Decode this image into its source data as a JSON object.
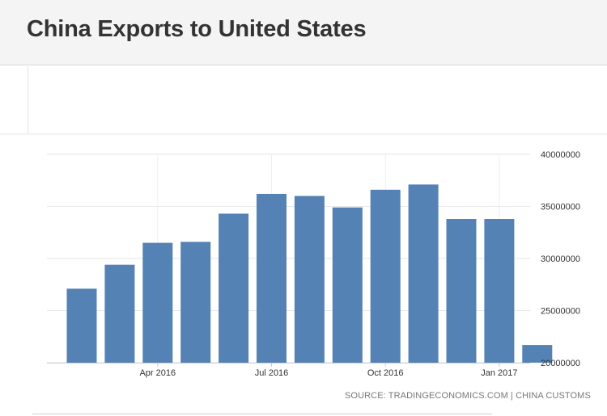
{
  "header": {
    "title": "China Exports to United States"
  },
  "source": {
    "text": "SOURCE: TRADINGECONOMICS.COM | CHINA CUSTOMS"
  },
  "chart_data": {
    "type": "bar",
    "title": "China Exports to United States",
    "xlabel": "",
    "ylabel": "",
    "categories": [
      "Feb 2016",
      "Mar 2016",
      "Apr 2016",
      "May 2016",
      "Jun 2016",
      "Jul 2016",
      "Aug 2016",
      "Sep 2016",
      "Oct 2016",
      "Nov 2016",
      "Dec 2016",
      "Jan 2017",
      "Feb 2017"
    ],
    "values": [
      27100000,
      29400000,
      31500000,
      31600000,
      34300000,
      36200000,
      36000000,
      34900000,
      36600000,
      37100000,
      33800000,
      33800000,
      21700000
    ],
    "ylim": [
      20000000,
      40000000
    ],
    "yticks": [
      "40000000",
      "35000000",
      "30000000",
      "25000000",
      "20000000"
    ],
    "xtick_labels": [
      "Apr 2016",
      "Jul 2016",
      "Oct 2016",
      "Jan 2017"
    ],
    "grid": true,
    "bar_color": "#5482b4",
    "y_axis_position": "right"
  }
}
